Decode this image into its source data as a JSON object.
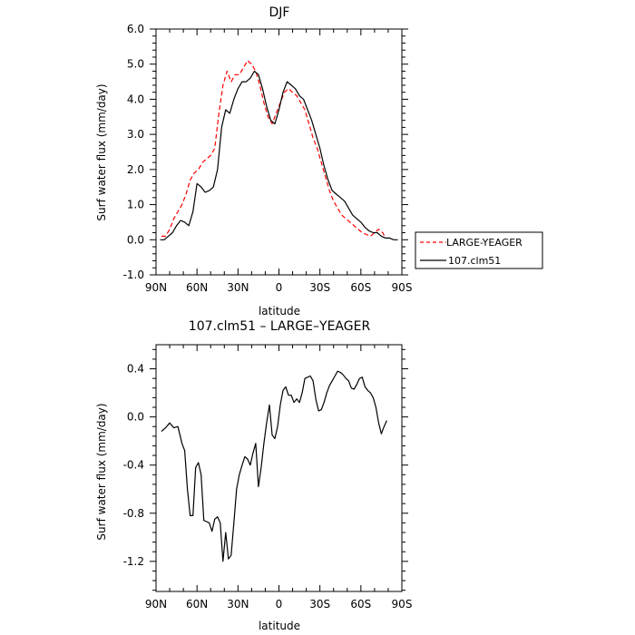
{
  "chart_data": [
    {
      "type": "line",
      "title": "DJF",
      "xlabel": "latitude",
      "ylabel": "Surf water flux (mm/day)",
      "xlim": [
        90,
        -90
      ],
      "ylim": [
        -1.0,
        6.0
      ],
      "x_ticks": [
        90,
        60,
        30,
        0,
        -30,
        -60,
        -90
      ],
      "x_tick_labels": [
        "90N",
        "60N",
        "30N",
        "0",
        "30S",
        "60S",
        "90S"
      ],
      "y_ticks": [
        -1.0,
        0.0,
        1.0,
        2.0,
        3.0,
        4.0,
        5.0,
        6.0
      ],
      "y_tick_labels": [
        "-1.0",
        "0.0",
        "1.0",
        "2.0",
        "3.0",
        "4.0",
        "5.0",
        "6.0"
      ],
      "legend_position": "right",
      "series": [
        {
          "name": "LARGE-YEAGER",
          "color": "#ff0000",
          "dash": "dashed",
          "x": [
            86,
            83,
            80,
            77,
            74,
            71,
            68,
            65,
            62,
            59,
            56,
            53,
            50,
            47,
            44,
            41,
            38,
            35,
            32,
            29,
            26,
            23,
            20,
            17,
            14,
            11,
            8,
            5,
            2,
            -1,
            -4,
            -7,
            -10,
            -13,
            -16,
            -19,
            -22,
            -25,
            -28,
            -31,
            -34,
            -37,
            -40,
            -43,
            -46,
            -49,
            -52,
            -55,
            -58,
            -61,
            -64,
            -67,
            -70,
            -73,
            -76,
            -78
          ],
          "y": [
            0.1,
            0.1,
            0.3,
            0.6,
            0.8,
            1.0,
            1.3,
            1.7,
            1.9,
            2.0,
            2.2,
            2.3,
            2.4,
            2.6,
            3.6,
            4.4,
            4.8,
            4.5,
            4.7,
            4.7,
            4.9,
            5.1,
            5.0,
            4.8,
            4.4,
            3.9,
            3.5,
            3.3,
            3.6,
            3.9,
            4.2,
            4.3,
            4.2,
            4.1,
            3.9,
            3.7,
            3.3,
            2.9,
            2.6,
            2.2,
            1.8,
            1.4,
            1.1,
            0.9,
            0.7,
            0.6,
            0.5,
            0.4,
            0.3,
            0.2,
            0.15,
            0.1,
            0.2,
            0.3,
            0.2,
            0.05
          ]
        },
        {
          "name": "107.clm51",
          "color": "#000000",
          "dash": "solid",
          "x": [
            87,
            84,
            81,
            78,
            75,
            72,
            69,
            66,
            63,
            60,
            57,
            54,
            51,
            48,
            45,
            42,
            39,
            36,
            33,
            30,
            27,
            24,
            21,
            18,
            15,
            12,
            9,
            6,
            3,
            0,
            -3,
            -6,
            -9,
            -12,
            -15,
            -18,
            -21,
            -24,
            -27,
            -30,
            -33,
            -36,
            -39,
            -42,
            -45,
            -48,
            -51,
            -54,
            -57,
            -60,
            -63,
            -66,
            -69,
            -72,
            -75,
            -78,
            -81,
            -84,
            -87
          ],
          "y": [
            0.0,
            0.0,
            0.1,
            0.2,
            0.4,
            0.55,
            0.5,
            0.4,
            0.8,
            1.6,
            1.5,
            1.35,
            1.4,
            1.5,
            2.0,
            3.2,
            3.7,
            3.6,
            4.0,
            4.3,
            4.5,
            4.5,
            4.6,
            4.8,
            4.7,
            4.3,
            3.8,
            3.4,
            3.3,
            3.7,
            4.2,
            4.5,
            4.4,
            4.3,
            4.1,
            4.0,
            3.7,
            3.4,
            3.0,
            2.6,
            2.1,
            1.7,
            1.4,
            1.3,
            1.2,
            1.1,
            0.9,
            0.7,
            0.6,
            0.5,
            0.35,
            0.25,
            0.2,
            0.2,
            0.1,
            0.05,
            0.05,
            0.0,
            0.0
          ]
        }
      ]
    },
    {
      "type": "line",
      "title": "107.clm51 – LARGE–YEAGER",
      "xlabel": "latitude",
      "ylabel": "Surf water flux (mm/day)",
      "xlim": [
        90,
        -90
      ],
      "ylim": [
        -1.45,
        0.6
      ],
      "x_ticks": [
        90,
        60,
        30,
        0,
        -30,
        -60,
        -90
      ],
      "x_tick_labels": [
        "90N",
        "60N",
        "30N",
        "0",
        "30S",
        "60S",
        "90S"
      ],
      "y_ticks": [
        -1.2,
        -0.8,
        -0.4,
        0.0,
        0.4
      ],
      "y_tick_labels": [
        "-1.2",
        "-0.8",
        "-0.4",
        "0.0",
        "0.4"
      ],
      "series": [
        {
          "color": "#000000",
          "dash": "solid",
          "x": [
            86,
            83,
            80,
            77,
            74,
            71,
            69,
            67,
            65,
            63,
            61,
            59,
            57,
            55,
            53,
            51,
            49,
            47,
            45,
            43,
            41,
            39,
            37,
            35,
            33,
            31,
            29,
            27,
            25,
            23,
            21,
            19,
            17,
            15,
            13,
            11,
            9,
            7,
            5,
            3,
            1,
            -1,
            -3,
            -5,
            -7,
            -9,
            -11,
            -13,
            -15,
            -17,
            -19,
            -21,
            -23,
            -25,
            -27,
            -29,
            -31,
            -33,
            -35,
            -37,
            -39,
            -41,
            -43,
            -45,
            -47,
            -49,
            -51,
            -53,
            -55,
            -57,
            -59,
            -61,
            -63,
            -65,
            -67,
            -69,
            -71,
            -73,
            -75,
            -77,
            -79
          ],
          "y": [
            -0.12,
            -0.09,
            -0.05,
            -0.09,
            -0.08,
            -0.22,
            -0.28,
            -0.6,
            -0.82,
            -0.82,
            -0.42,
            -0.38,
            -0.48,
            -0.86,
            -0.87,
            -0.88,
            -0.95,
            -0.85,
            -0.83,
            -0.88,
            -1.2,
            -0.96,
            -1.18,
            -1.15,
            -0.88,
            -0.6,
            -0.48,
            -0.4,
            -0.33,
            -0.35,
            -0.4,
            -0.3,
            -0.22,
            -0.58,
            -0.42,
            -0.22,
            -0.05,
            0.1,
            -0.15,
            -0.18,
            -0.08,
            0.1,
            0.22,
            0.25,
            0.18,
            0.18,
            0.12,
            0.15,
            0.12,
            0.2,
            0.32,
            0.33,
            0.34,
            0.3,
            0.15,
            0.05,
            0.06,
            0.12,
            0.2,
            0.26,
            0.3,
            0.34,
            0.38,
            0.37,
            0.35,
            0.32,
            0.3,
            0.24,
            0.23,
            0.27,
            0.32,
            0.33,
            0.25,
            0.22,
            0.2,
            0.16,
            0.08,
            -0.05,
            -0.14,
            -0.08,
            -0.03
          ]
        }
      ]
    }
  ]
}
